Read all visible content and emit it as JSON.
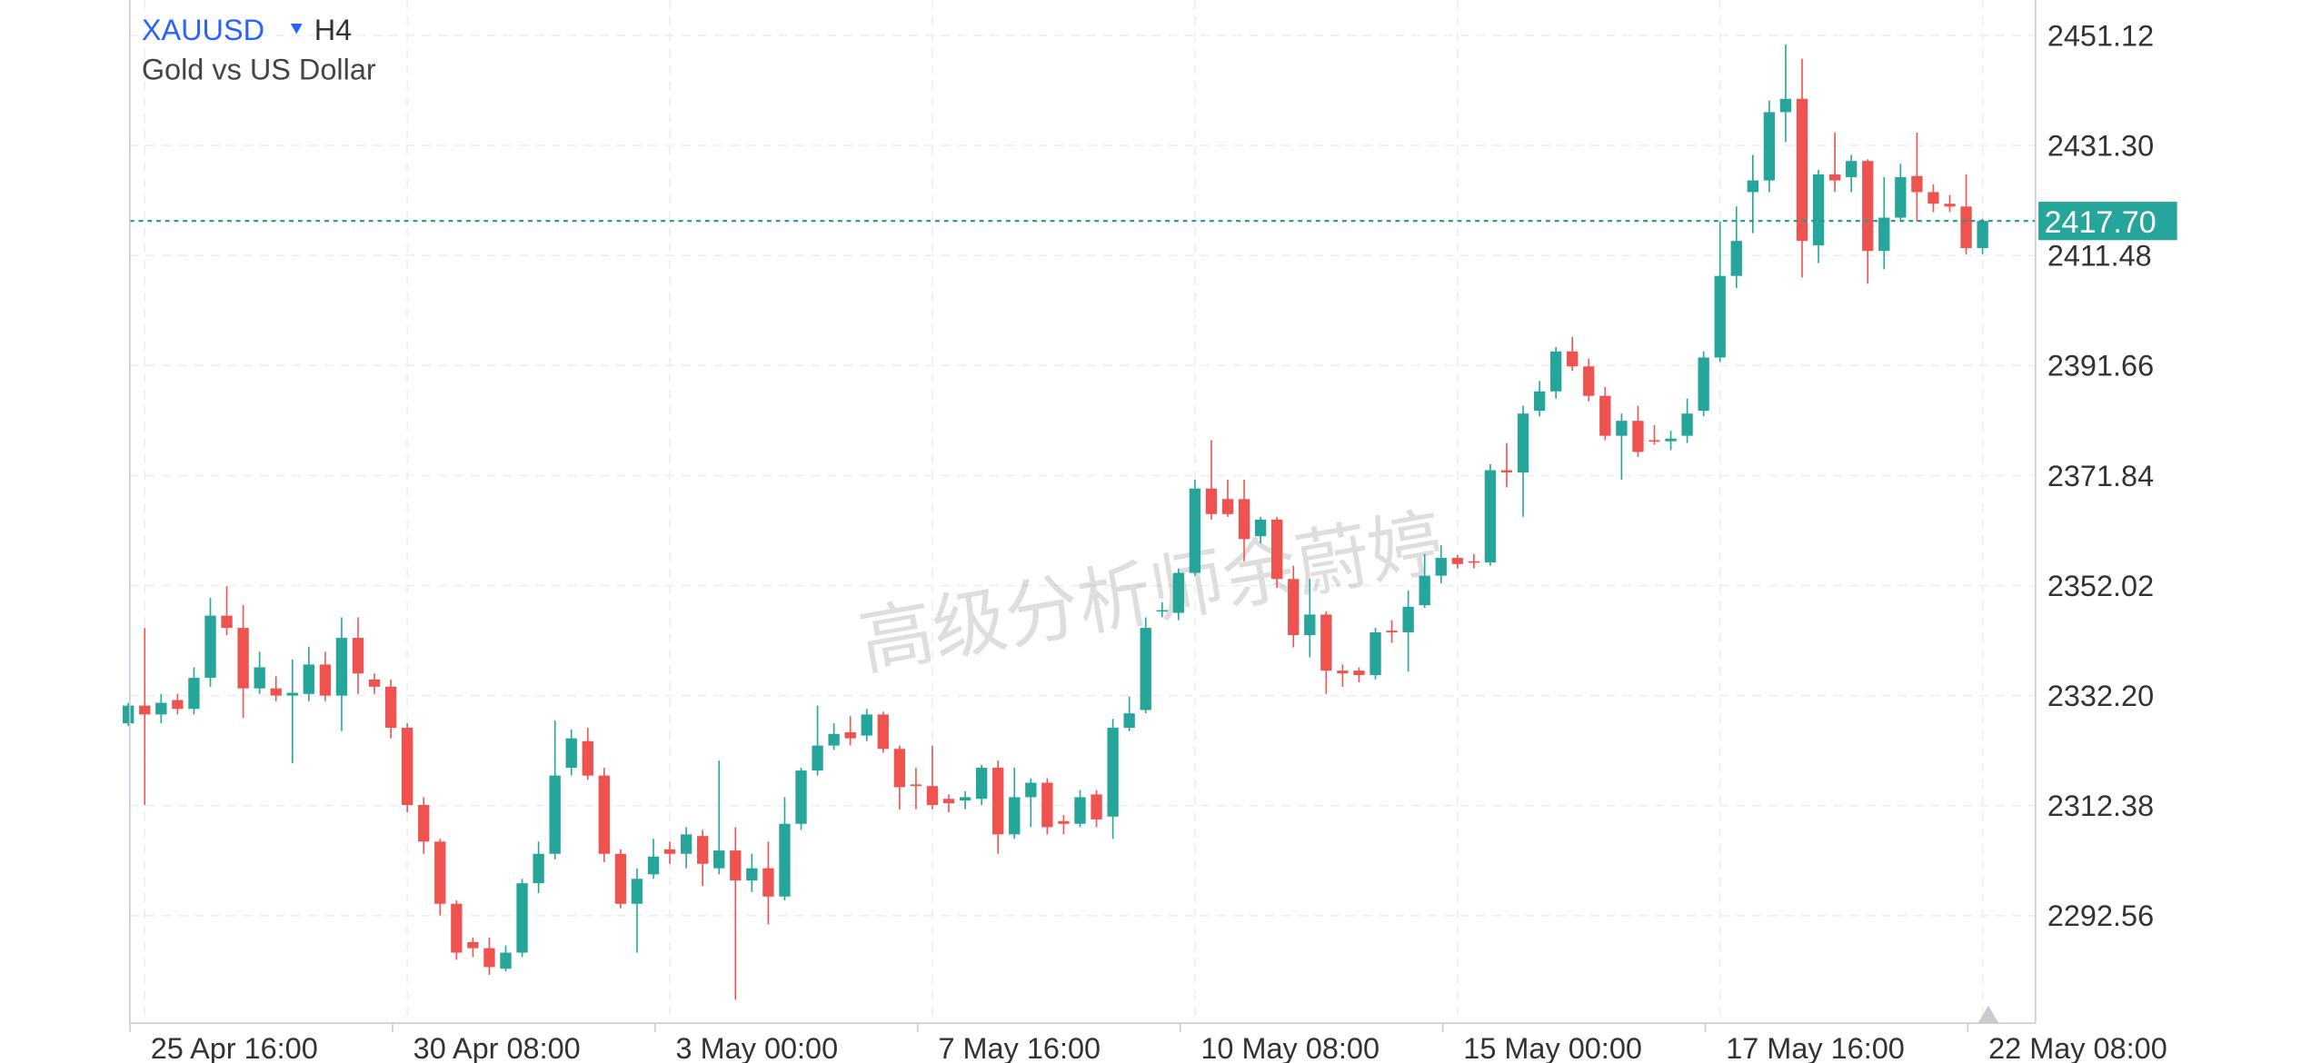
{
  "chart_data": {
    "type": "candlestick",
    "symbol": "XAUUSD",
    "timeframe": "H4",
    "subtitle": "Gold vs US Dollar",
    "watermark": "高级分析师余蔚婷",
    "up_color": "#26a69a",
    "down_color": "#ef5350",
    "x": [
      null,
      "25 Apr 16:00",
      null,
      null,
      null,
      null,
      null,
      null,
      null,
      null,
      null,
      null,
      null,
      null,
      null,
      null,
      null,
      "30 Apr 08:00",
      null,
      null,
      null,
      null,
      null,
      null,
      null,
      null,
      null,
      null,
      null,
      null,
      null,
      null,
      null,
      "3 May 00:00",
      null,
      null,
      null,
      null,
      null,
      null,
      null,
      null,
      null,
      null,
      null,
      null,
      null,
      null,
      null,
      "7 May 16:00",
      null,
      null,
      null,
      null,
      null,
      null,
      null,
      null,
      null,
      null,
      null,
      null,
      null,
      null,
      null,
      "10 May 08:00",
      null,
      null,
      null,
      null,
      null,
      null,
      null,
      null,
      null,
      null,
      null,
      null,
      null,
      null,
      null,
      "15 May 00:00",
      null,
      null,
      null,
      null,
      null,
      null,
      null,
      null,
      null,
      null,
      null,
      null,
      null,
      null,
      null,
      "17 May 16:00",
      null,
      null,
      null,
      null,
      null,
      null,
      null,
      null,
      null,
      null,
      null,
      null,
      null,
      null,
      null,
      "22 May 08:00"
    ],
    "open": [
      2327.2,
      2330.4,
      2328.8,
      2331.4,
      2329.8,
      2335.4,
      2346.6,
      2344.4,
      2333.5,
      2333.5,
      2332.2,
      2332.5,
      2337.8,
      2332.2,
      2342.6,
      2335.1,
      2333.8,
      2326.4,
      2312.5,
      2305.9,
      2294.7,
      2287.8,
      2286.7,
      2283.0,
      2285.9,
      2298.4,
      2303.7,
      2319.2,
      2324.0,
      2317.8,
      2303.7,
      2294.7,
      2300.0,
      2304.5,
      2303.7,
      2306.9,
      2301.1,
      2304.3,
      2298.9,
      2301.1,
      2296.0,
      2309.1,
      2318.7,
      2323.2,
      2325.6,
      2325.0,
      2328.8,
      2322.6,
      2316.2,
      2315.9,
      2313.6,
      2313.3,
      2313.6,
      2319.2,
      2307.2,
      2313.9,
      2316.5,
      2309.6,
      2309.1,
      2314.4,
      2310.4,
      2326.4,
      2329.6,
      2347.4,
      2347.1,
      2354.3,
      2369.5,
      2367.6,
      2367.6,
      2360.9,
      2363.9,
      2353.2,
      2343.1,
      2346.8,
      2336.7,
      2336.7,
      2335.9,
      2343.9,
      2343.6,
      2348.5,
      2353.8,
      2357.0,
      2356.4,
      2356.2,
      2372.8,
      2372.4,
      2383.5,
      2387.0,
      2394.2,
      2391.5,
      2386.2,
      2379.0,
      2381.7,
      2378.2,
      2378.0,
      2379.0,
      2383.5,
      2393.1,
      2407.8,
      2422.9,
      2425.0,
      2437.3,
      2439.7,
      2413.3,
      2426.1,
      2425.6,
      2428.5,
      2412.3,
      2418.3,
      2425.8,
      2422.9,
      2420.8,
      2420.3,
      2412.8
    ],
    "high": [
      2330.9,
      2344.4,
      2332.5,
      2332.5,
      2337.3,
      2349.8,
      2351.9,
      2348.5,
      2340.1,
      2335.7,
      2338.7,
      2341.0,
      2340.1,
      2346.3,
      2346.3,
      2336.2,
      2335.1,
      2327.2,
      2313.9,
      2306.4,
      2295.3,
      2288.6,
      2288.6,
      2287.2,
      2299.2,
      2305.9,
      2327.7,
      2326.1,
      2326.4,
      2319.2,
      2304.5,
      2301.1,
      2306.4,
      2305.9,
      2308.5,
      2308.0,
      2320.5,
      2308.5,
      2303.7,
      2305.9,
      2313.9,
      2319.2,
      2330.4,
      2327.2,
      2328.5,
      2329.8,
      2329.3,
      2323.2,
      2319.2,
      2323.2,
      2314.4,
      2315.0,
      2319.7,
      2320.5,
      2319.2,
      2317.3,
      2317.3,
      2310.7,
      2315.2,
      2315.2,
      2328.0,
      2332.0,
      2346.3,
      2349.0,
      2355.1,
      2371.1,
      2378.2,
      2371.1,
      2371.1,
      2364.4,
      2364.4,
      2355.6,
      2353.2,
      2347.4,
      2337.8,
      2337.3,
      2344.4,
      2345.8,
      2351.1,
      2357.7,
      2359.3,
      2357.5,
      2357.7,
      2373.9,
      2377.7,
      2384.4,
      2388.9,
      2395.0,
      2396.8,
      2392.9,
      2387.8,
      2383.0,
      2384.4,
      2380.9,
      2379.9,
      2385.7,
      2394.2,
      2417.6,
      2420.3,
      2429.6,
      2439.4,
      2449.5,
      2446.9,
      2426.9,
      2433.6,
      2429.6,
      2428.8,
      2425.6,
      2428.0,
      2433.6,
      2424.3,
      2422.4,
      2426.1,
      2418.1
    ],
    "low": [
      2326.7,
      2312.5,
      2327.2,
      2328.8,
      2328.8,
      2333.8,
      2343.1,
      2328.2,
      2332.5,
      2331.2,
      2320.0,
      2331.2,
      2331.2,
      2325.8,
      2332.5,
      2332.5,
      2324.5,
      2311.2,
      2303.7,
      2292.6,
      2284.6,
      2285.1,
      2281.9,
      2282.5,
      2285.1,
      2296.6,
      2302.7,
      2317.8,
      2317.0,
      2302.2,
      2293.9,
      2285.9,
      2299.2,
      2301.9,
      2301.1,
      2297.9,
      2300.0,
      2277.4,
      2296.8,
      2291.0,
      2295.3,
      2308.0,
      2317.8,
      2322.4,
      2323.2,
      2324.0,
      2321.9,
      2311.7,
      2311.7,
      2311.7,
      2311.2,
      2311.7,
      2312.5,
      2303.7,
      2306.4,
      2308.5,
      2307.2,
      2307.2,
      2308.5,
      2308.5,
      2306.4,
      2325.8,
      2329.0,
      2346.3,
      2345.8,
      2353.8,
      2363.9,
      2364.4,
      2356.4,
      2359.6,
      2351.6,
      2340.9,
      2339.1,
      2332.5,
      2333.8,
      2334.6,
      2335.1,
      2341.7,
      2336.5,
      2348.0,
      2352.4,
      2355.1,
      2355.1,
      2355.6,
      2369.7,
      2364.4,
      2382.5,
      2385.7,
      2390.7,
      2385.2,
      2378.2,
      2371.1,
      2375.2,
      2377.4,
      2376.4,
      2377.7,
      2382.5,
      2392.3,
      2405.6,
      2415.5,
      2422.9,
      2431.9,
      2407.5,
      2410.1,
      2422.9,
      2422.9,
      2406.4,
      2409.0,
      2417.6,
      2417.6,
      2419.3,
      2419.3,
      2411.7,
      2411.7
    ],
    "close": [
      2330.4,
      2328.8,
      2330.9,
      2329.8,
      2335.4,
      2346.6,
      2344.4,
      2333.5,
      2337.3,
      2332.2,
      2332.7,
      2337.8,
      2332.2,
      2342.6,
      2336.2,
      2333.8,
      2326.4,
      2312.5,
      2305.9,
      2294.7,
      2285.9,
      2286.7,
      2283.3,
      2285.9,
      2298.4,
      2303.7,
      2317.8,
      2324.5,
      2317.8,
      2303.7,
      2294.7,
      2299.2,
      2303.2,
      2303.7,
      2307.2,
      2301.9,
      2304.3,
      2298.9,
      2301.1,
      2296.0,
      2309.1,
      2318.7,
      2323.2,
      2325.3,
      2324.5,
      2328.8,
      2322.6,
      2315.7,
      2315.9,
      2312.5,
      2312.8,
      2313.9,
      2319.2,
      2307.2,
      2313.9,
      2316.5,
      2308.5,
      2309.1,
      2313.9,
      2309.9,
      2326.4,
      2329.0,
      2344.4,
      2347.6,
      2354.3,
      2369.5,
      2364.9,
      2364.9,
      2360.4,
      2363.9,
      2353.2,
      2343.1,
      2346.8,
      2336.7,
      2336.2,
      2335.9,
      2343.6,
      2343.6,
      2348.2,
      2353.8,
      2357.0,
      2355.9,
      2356.2,
      2372.8,
      2372.4,
      2383.0,
      2387.0,
      2394.2,
      2391.5,
      2386.2,
      2379.0,
      2381.7,
      2376.1,
      2378.0,
      2378.5,
      2383.0,
      2393.1,
      2407.8,
      2414.1,
      2425.0,
      2437.3,
      2439.7,
      2414.1,
      2426.1,
      2425.0,
      2428.5,
      2412.3,
      2418.3,
      2425.6,
      2422.9,
      2420.8,
      2420.3,
      2412.8,
      2417.7
    ],
    "ylim": [
      2273.2,
      2457.5
    ],
    "yticks": [
      2292.56,
      2312.38,
      {
        "value": 2332.2,
        "label": "2332.20"
      },
      2352.02,
      2371.84,
      2391.66,
      2411.48,
      {
        "value": 2431.3,
        "label": "2431.30"
      },
      2451.12
    ],
    "current_price": {
      "value": 2417.7,
      "label": "2417.70"
    },
    "grid": true
  }
}
